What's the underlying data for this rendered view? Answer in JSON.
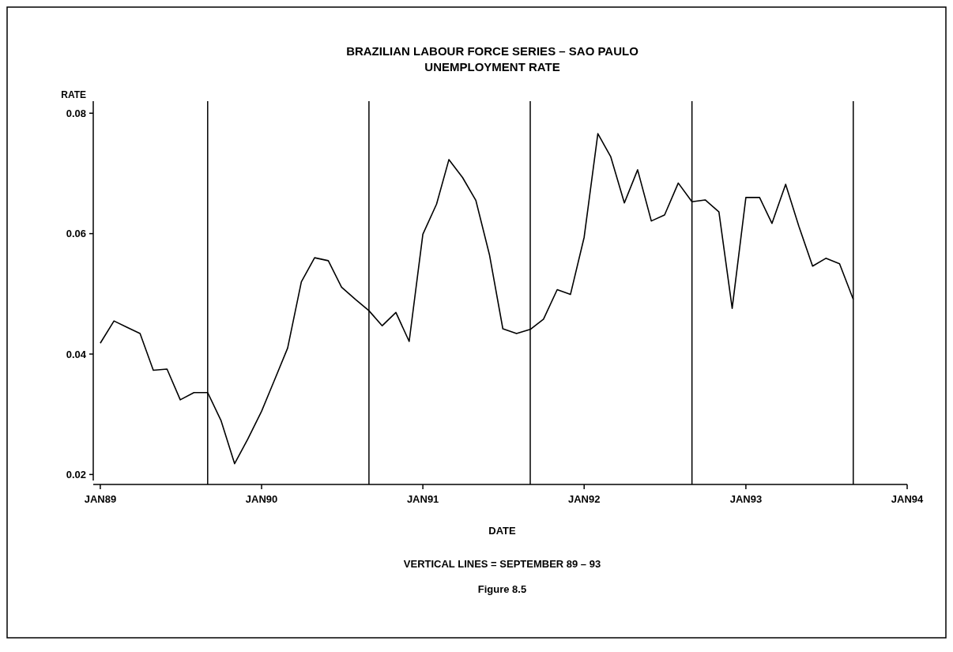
{
  "chart_data": {
    "type": "line",
    "title": "BRAZILIAN LABOUR FORCE SERIES – SAO PAULO",
    "subtitle": "UNEMPLOYMENT RATE",
    "xlabel": "DATE",
    "ylabel": "RATE",
    "annotations": [
      "VERTICAL LINES = SEPTEMBER 89 – 93",
      "Figure 8.5"
    ],
    "x": [
      "1989-01",
      "1989-02",
      "1989-03",
      "1989-04",
      "1989-05",
      "1989-06",
      "1989-07",
      "1989-08",
      "1989-09",
      "1989-10",
      "1989-11",
      "1989-12",
      "1990-01",
      "1990-02",
      "1990-03",
      "1990-04",
      "1990-05",
      "1990-06",
      "1990-07",
      "1990-08",
      "1990-09",
      "1990-10",
      "1990-11",
      "1990-12",
      "1991-01",
      "1991-02",
      "1991-03",
      "1991-04",
      "1991-05",
      "1991-06",
      "1991-07",
      "1991-08",
      "1991-09",
      "1991-10",
      "1991-11",
      "1991-12",
      "1992-01",
      "1992-02",
      "1992-03",
      "1992-04",
      "1992-05",
      "1992-06",
      "1992-07",
      "1992-08",
      "1992-09",
      "1992-10",
      "1992-11",
      "1992-12",
      "1993-01",
      "1993-02",
      "1993-03",
      "1993-04",
      "1993-05",
      "1993-06",
      "1993-07",
      "1993-08",
      "1993-09"
    ],
    "series": [
      {
        "color": "#000000",
        "values": [
          0.0418,
          0.0455,
          0.0445,
          0.0434,
          0.0373,
          0.0375,
          0.0324,
          0.0336,
          0.0336,
          0.029,
          0.0218,
          0.0259,
          0.0305,
          0.036,
          0.041,
          0.052,
          0.056,
          0.0555,
          0.0511,
          0.0491,
          0.0472,
          0.0447,
          0.0469,
          0.0421,
          0.0599,
          0.0649,
          0.0723,
          0.0693,
          0.0655,
          0.0564,
          0.0442,
          0.0434,
          0.0441,
          0.0458,
          0.0507,
          0.0499,
          0.0594,
          0.0766,
          0.0728,
          0.0651,
          0.0706,
          0.0621,
          0.0631,
          0.0684,
          0.0653,
          0.0656,
          0.0636,
          0.0476,
          0.066,
          0.066,
          0.0617,
          0.0682,
          0.0612,
          0.0546,
          0.0559,
          0.055,
          0.0491
        ]
      }
    ],
    "xlim": [
      "1988-12-25",
      "1994-01"
    ],
    "xticks": [
      {
        "value": "1989-01",
        "label": "JAN89"
      },
      {
        "value": "1990-01",
        "label": "JAN90"
      },
      {
        "value": "1991-01",
        "label": "JAN91"
      },
      {
        "value": "1992-01",
        "label": "JAN92"
      },
      {
        "value": "1993-01",
        "label": "JAN93"
      },
      {
        "value": "1994-01",
        "label": "JAN94"
      }
    ],
    "ylim": [
      0.019,
      0.082
    ],
    "yticks": [
      {
        "value": 0.02,
        "label": "0.02"
      },
      {
        "value": 0.04,
        "label": "0.04"
      },
      {
        "value": 0.06,
        "label": "0.06"
      },
      {
        "value": 0.08,
        "label": "0.08"
      }
    ],
    "ref_lines": [
      {
        "axis": "x",
        "value": "1989-09",
        "color": "#000000"
      },
      {
        "axis": "x",
        "value": "1990-09",
        "color": "#000000"
      },
      {
        "axis": "x",
        "value": "1991-09",
        "color": "#000000"
      },
      {
        "axis": "x",
        "value": "1992-09",
        "color": "#000000"
      },
      {
        "axis": "x",
        "value": "1993-09",
        "color": "#000000"
      }
    ],
    "grid": false,
    "marker": "none",
    "line_style": "solid"
  }
}
